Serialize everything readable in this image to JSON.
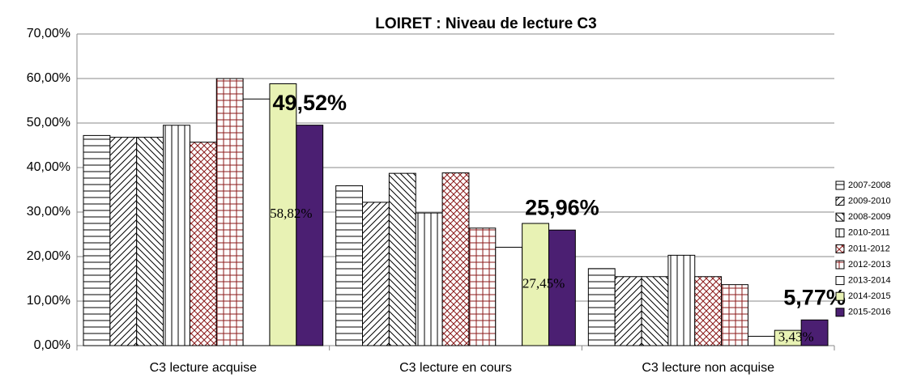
{
  "chart_data": {
    "type": "bar",
    "title": "LOIRET : Niveau de lecture C3",
    "categories": [
      "C3 lecture acquise",
      "C3 lecture en cours",
      "C3 lecture non acquise"
    ],
    "ylim": [
      0,
      70
    ],
    "yticks": [
      {
        "value": 0,
        "label": "0,00%"
      },
      {
        "value": 10,
        "label": "10,00%"
      },
      {
        "value": 20,
        "label": "20,00%"
      },
      {
        "value": 30,
        "label": "30,00%"
      },
      {
        "value": 40,
        "label": "40,00%"
      },
      {
        "value": 50,
        "label": "50,00%"
      },
      {
        "value": 60,
        "label": "60,00%"
      },
      {
        "value": 70,
        "label": "70,00%"
      }
    ],
    "grid": true,
    "legend": "right",
    "series": [
      {
        "name": "2007-2008",
        "color": "#000000",
        "pattern": "horizontal",
        "values": [
          47.2,
          35.9,
          17.3
        ]
      },
      {
        "name": "2009-2010",
        "color": "#000000",
        "pattern": "diag-up",
        "values": [
          46.8,
          32.2,
          15.5
        ]
      },
      {
        "name": "2008-2009",
        "color": "#000000",
        "pattern": "diag-down",
        "values": [
          46.8,
          38.7,
          15.5
        ]
      },
      {
        "name": "2010-2011",
        "color": "#000000",
        "pattern": "vertical",
        "values": [
          49.5,
          29.8,
          20.3
        ]
      },
      {
        "name": "2011-2012",
        "color": "#8b1a1a",
        "pattern": "crosshatch",
        "values": [
          45.7,
          38.8,
          15.5
        ]
      },
      {
        "name": "2012-2013",
        "color": "#8b1a1a",
        "pattern": "grid",
        "values": [
          60.0,
          26.4,
          13.7
        ]
      },
      {
        "name": "2013-2014",
        "color": "#ffffff",
        "pattern": "solid",
        "values": [
          55.4,
          22.1,
          2.1
        ]
      },
      {
        "name": "2014-2015",
        "color": "#e8f2b4",
        "pattern": "solid",
        "values": [
          58.82,
          27.45,
          3.43
        ],
        "value_labels": [
          "58,82%",
          "27,45%",
          "3,43%"
        ],
        "label_style": "serif"
      },
      {
        "name": "2015-2016",
        "color": "#4b1f72",
        "pattern": "solid",
        "values": [
          49.52,
          25.96,
          5.77
        ],
        "value_labels": [
          "49,52%",
          "25,96%",
          "5,77%"
        ],
        "label_style": "bold"
      }
    ]
  }
}
